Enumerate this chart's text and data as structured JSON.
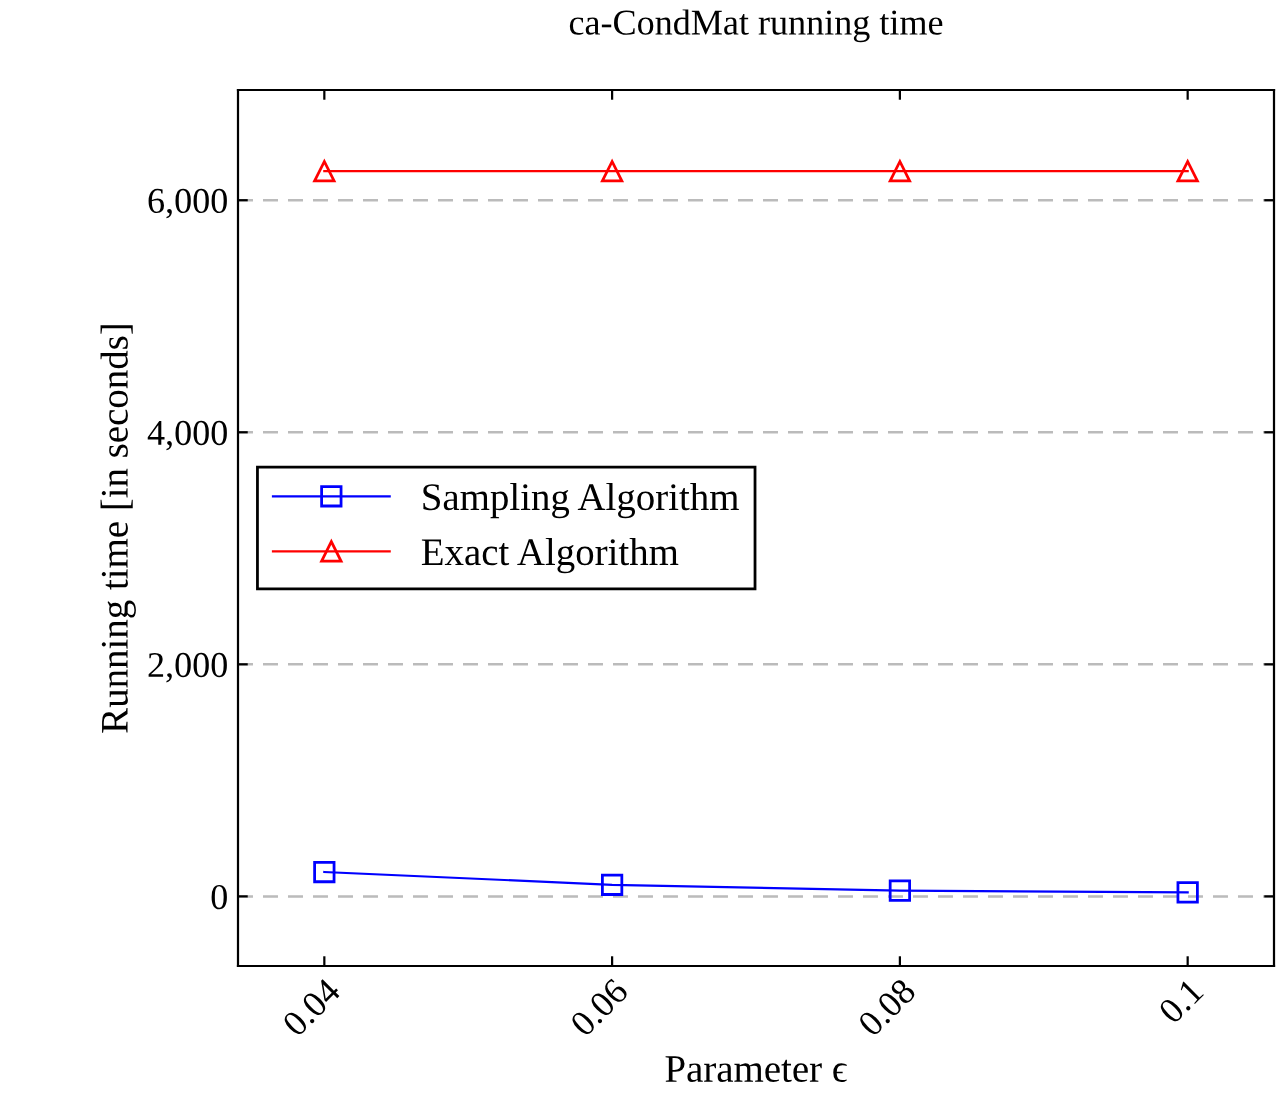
{
  "chart_data": {
    "type": "line",
    "title": "ca-CondMat running time",
    "xlabel": "Parameter ϵ",
    "ylabel": "Running time [in seconds]",
    "x": [
      0.04,
      0.06,
      0.08,
      0.1
    ],
    "series": [
      {
        "name": "Sampling Algorithm",
        "color": "#0000ff",
        "marker": "square",
        "values": [
          210,
          100,
          50,
          35
        ]
      },
      {
        "name": "Exact Algorithm",
        "color": "#ff0000",
        "marker": "triangle",
        "values": [
          6250,
          6250,
          6250,
          6250
        ]
      }
    ],
    "xlim": [
      0.034,
      0.106
    ],
    "xticks": [
      0.04,
      0.06,
      0.08,
      0.1
    ],
    "ylim": [
      -600,
      6950
    ],
    "yticks": [
      {
        "value": 0,
        "label": "0"
      },
      {
        "value": 2000,
        "label": "2,000"
      },
      {
        "value": 4000,
        "label": "4,000"
      },
      {
        "value": 6000,
        "label": "6,000"
      }
    ],
    "grid": "y",
    "legend": "center left",
    "line_style": "solid"
  }
}
